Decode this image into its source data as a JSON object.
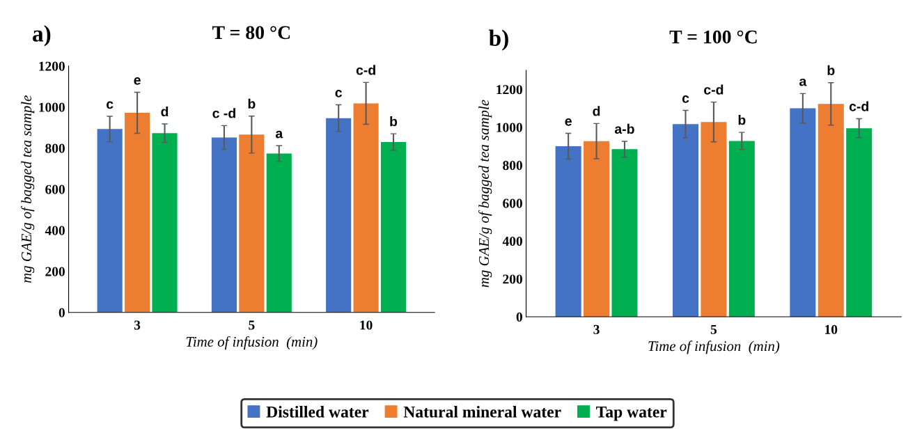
{
  "chart_data": [
    {
      "type": "bar",
      "title": "T = 80 °C",
      "annotations": [
        "a)"
      ],
      "xlabel": "Time of infusion  (min)",
      "ylabel": "mg GAE/g of bagged tea sample",
      "categories": [
        "3",
        "5",
        "10"
      ],
      "ylim": [
        0,
        1200
      ],
      "yticks": [
        0,
        200,
        400,
        600,
        800,
        1000,
        1200
      ],
      "grid": false,
      "legend": "bottom",
      "series": [
        {
          "name": "Distilled water",
          "color": "#4472c4",
          "values": [
            893,
            852,
            946
          ],
          "errors": [
            62,
            58,
            65
          ],
          "value_labels": [
            "c",
            "c -d",
            "c"
          ]
        },
        {
          "name": "Natural mineral water",
          "color": "#ed7d31",
          "values": [
            972,
            866,
            1018
          ],
          "errors": [
            100,
            90,
            102
          ],
          "value_labels": [
            "e",
            "b",
            "c-d"
          ]
        },
        {
          "name": "Tap water",
          "color": "#00b050",
          "values": [
            873,
            774,
            830
          ],
          "errors": [
            45,
            38,
            40
          ],
          "value_labels": [
            "d",
            "a",
            "b"
          ]
        }
      ]
    },
    {
      "type": "bar",
      "title": "T = 100 °C",
      "annotations": [
        "b)"
      ],
      "xlabel": "Time of infusion  (min)",
      "ylabel": "mg GAE/g of bagged tea sample",
      "categories": [
        "3",
        "5",
        "10"
      ],
      "ylim": [
        0,
        1300
      ],
      "yticks": [
        0,
        200,
        400,
        600,
        800,
        1000,
        1200
      ],
      "grid": false,
      "legend": "bottom",
      "series": [
        {
          "name": "Distilled water",
          "color": "#4472c4",
          "values": [
            900,
            1017,
            1100
          ],
          "errors": [
            68,
            72,
            78
          ],
          "value_labels": [
            "e",
            "c",
            "a"
          ]
        },
        {
          "name": "Natural mineral water",
          "color": "#ed7d31",
          "values": [
            927,
            1028,
            1123
          ],
          "errors": [
            93,
            105,
            112
          ],
          "value_labels": [
            "d",
            "c-d",
            "b"
          ]
        },
        {
          "name": "Tap water",
          "color": "#00b050",
          "values": [
            884,
            928,
            995
          ],
          "errors": [
            42,
            45,
            50
          ],
          "value_labels": [
            "a-b",
            "b",
            "c-d"
          ]
        }
      ]
    }
  ]
}
